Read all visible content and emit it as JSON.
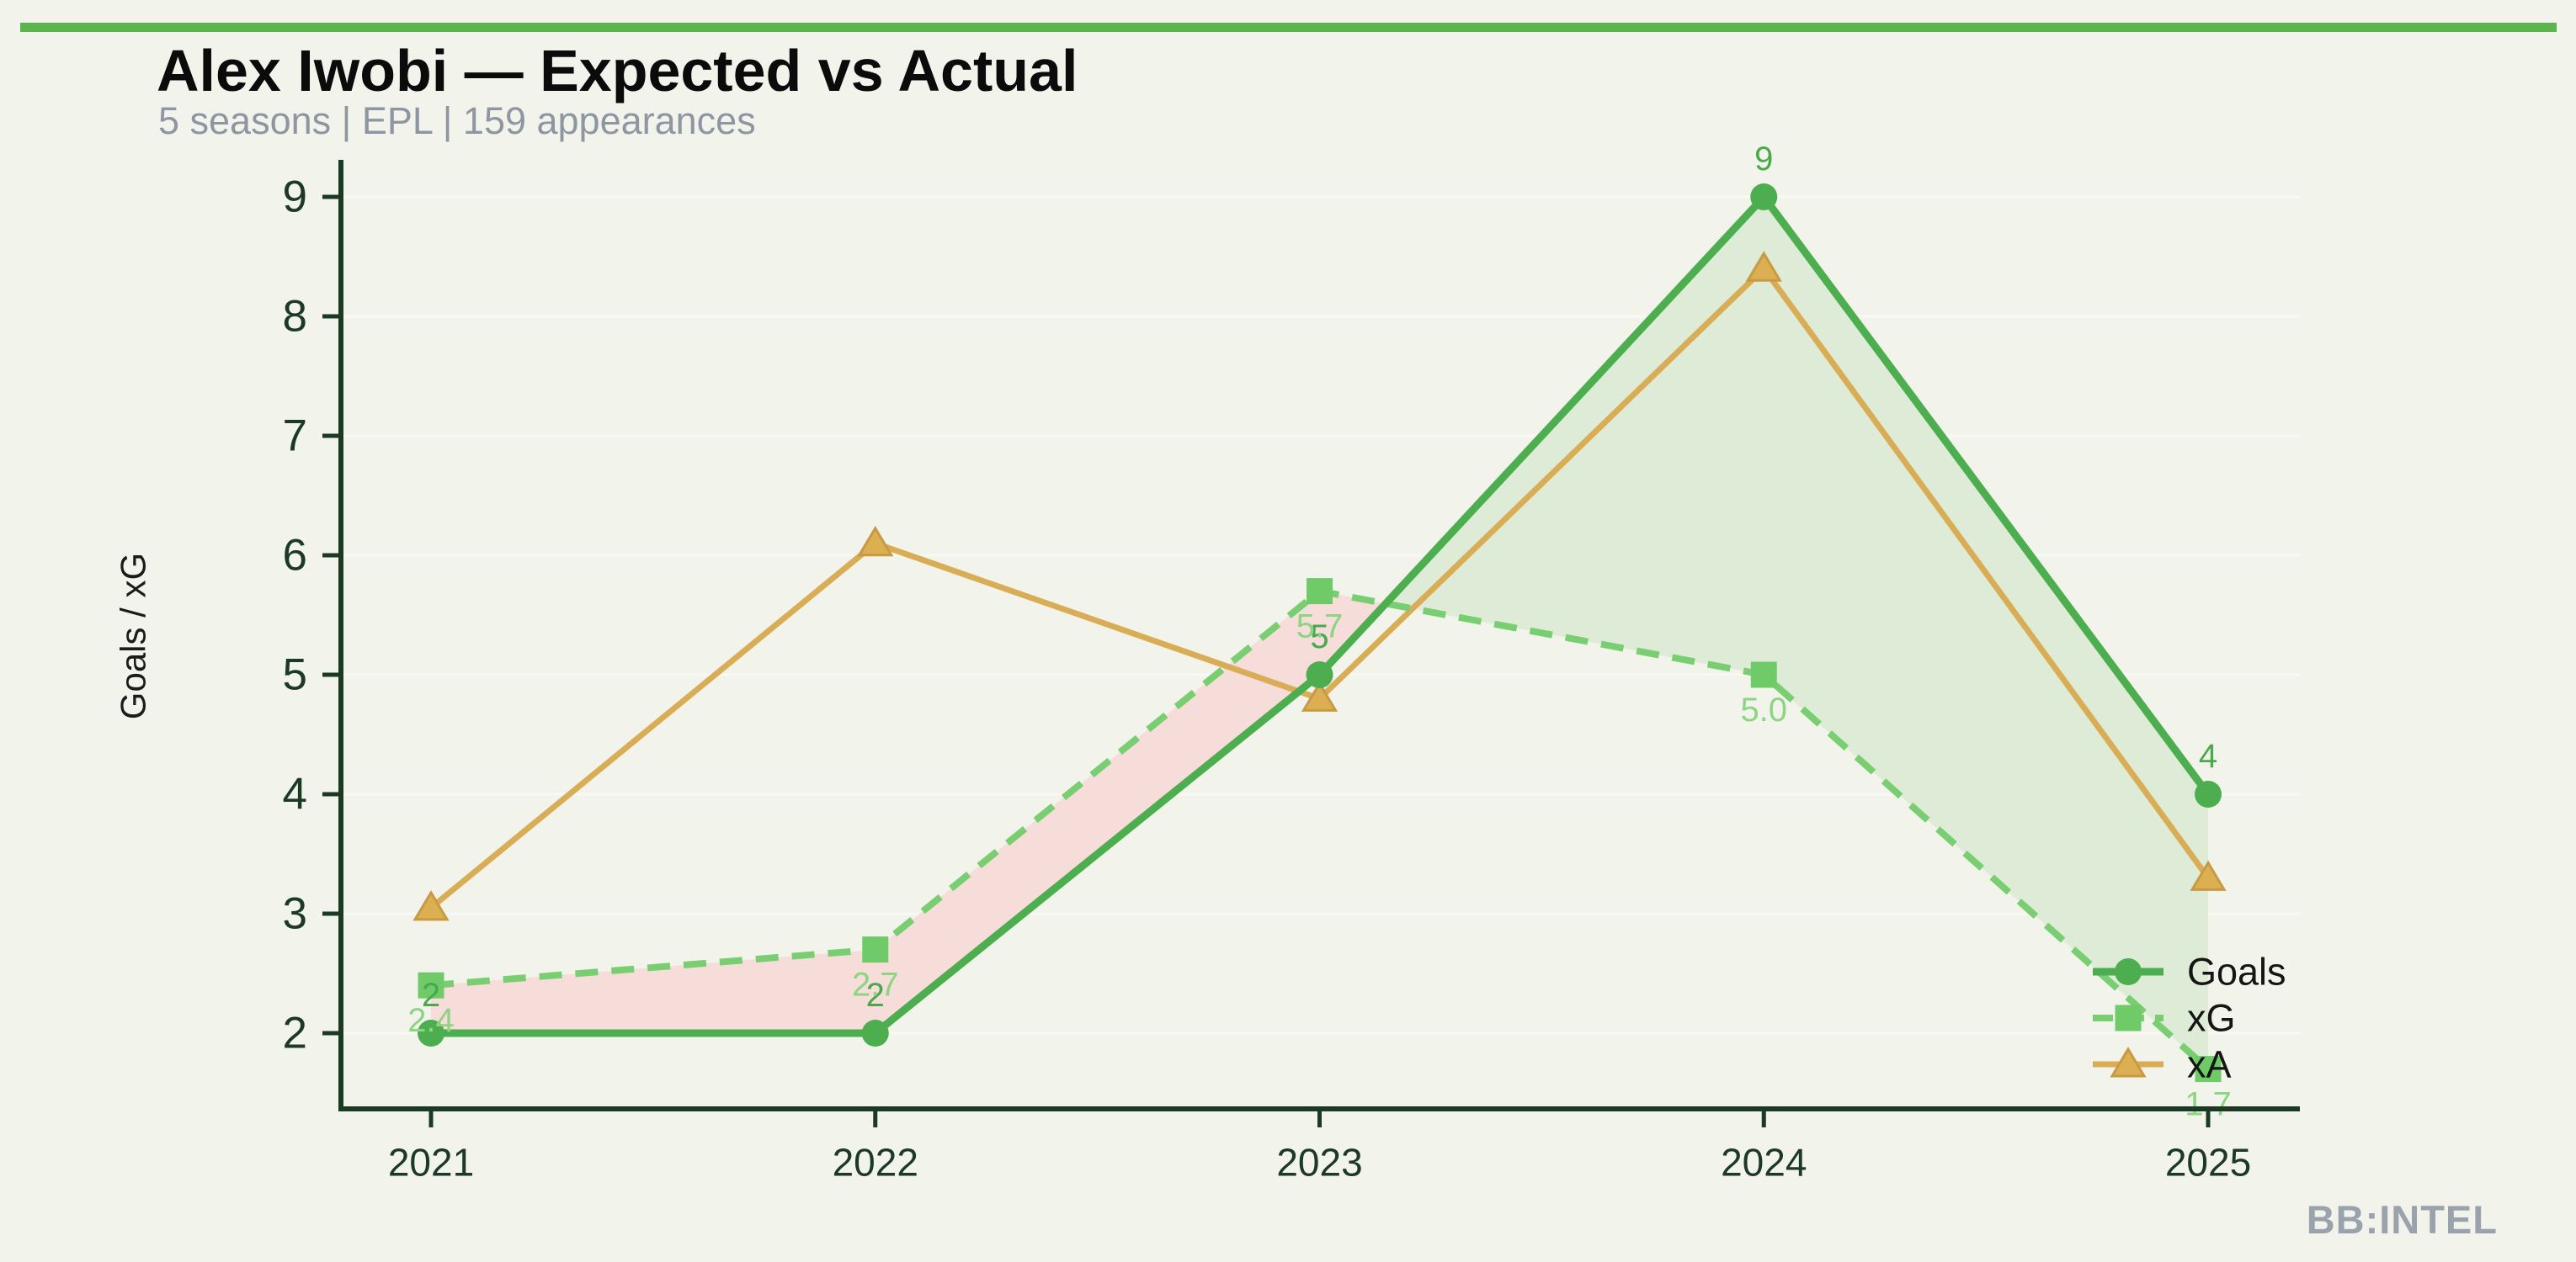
{
  "top_bar": {
    "color": "#5bb54e"
  },
  "header": {
    "title": "Alex Iwobi — Expected vs Actual",
    "subtitle": "5 seasons | EPL | 159 appearances"
  },
  "watermark": "BB:INTEL",
  "chart_data": {
    "type": "line",
    "categories": [
      "2021",
      "2022",
      "2023",
      "2024",
      "2025"
    ],
    "series": [
      {
        "name": "Goals",
        "values": [
          2,
          2,
          5,
          9,
          4
        ],
        "labels": [
          "2",
          "2",
          "5",
          "9",
          "4"
        ],
        "color": "#4cae4f",
        "label_color": "#4aa84d",
        "marker": "circle",
        "style": "solid"
      },
      {
        "name": "xG",
        "values": [
          2.4,
          2.7,
          5.7,
          5.0,
          1.7
        ],
        "labels": [
          "2.4",
          "2.7",
          "5.7",
          "5.0",
          "1.7"
        ],
        "color": "#79ce72",
        "label_color": "#8bd583",
        "marker": "square",
        "style": "dashed"
      },
      {
        "name": "xA",
        "values": [
          3.05,
          6.1,
          4.8,
          8.4,
          3.3
        ],
        "labels": [],
        "color": "#d9ad55",
        "label_color": "#d9ad55",
        "marker": "triangle",
        "style": "solid"
      }
    ],
    "title": "Alex Iwobi — Expected vs Actual",
    "xlabel": "",
    "ylabel": "Goals / xG",
    "yticks": [
      2,
      3,
      4,
      5,
      6,
      7,
      8,
      9
    ],
    "ylim": [
      1.37,
      9.42
    ],
    "grid": "horizontal-faint",
    "legend": {
      "position": "lower right",
      "entries": [
        "Goals",
        "xG",
        "xA"
      ]
    },
    "fills": {
      "between": [
        "Goals",
        "xG"
      ],
      "over_color": "#dcead5",
      "under_color": "#f5dbd8",
      "over_meaning": "Goals above xG",
      "under_meaning": "Goals below xG"
    },
    "colors": {
      "axis": "#1c3a23",
      "tick_labels": "#1c3a23",
      "grid_line": "#f9faf4",
      "axis_title": "#1b1b1b"
    }
  }
}
